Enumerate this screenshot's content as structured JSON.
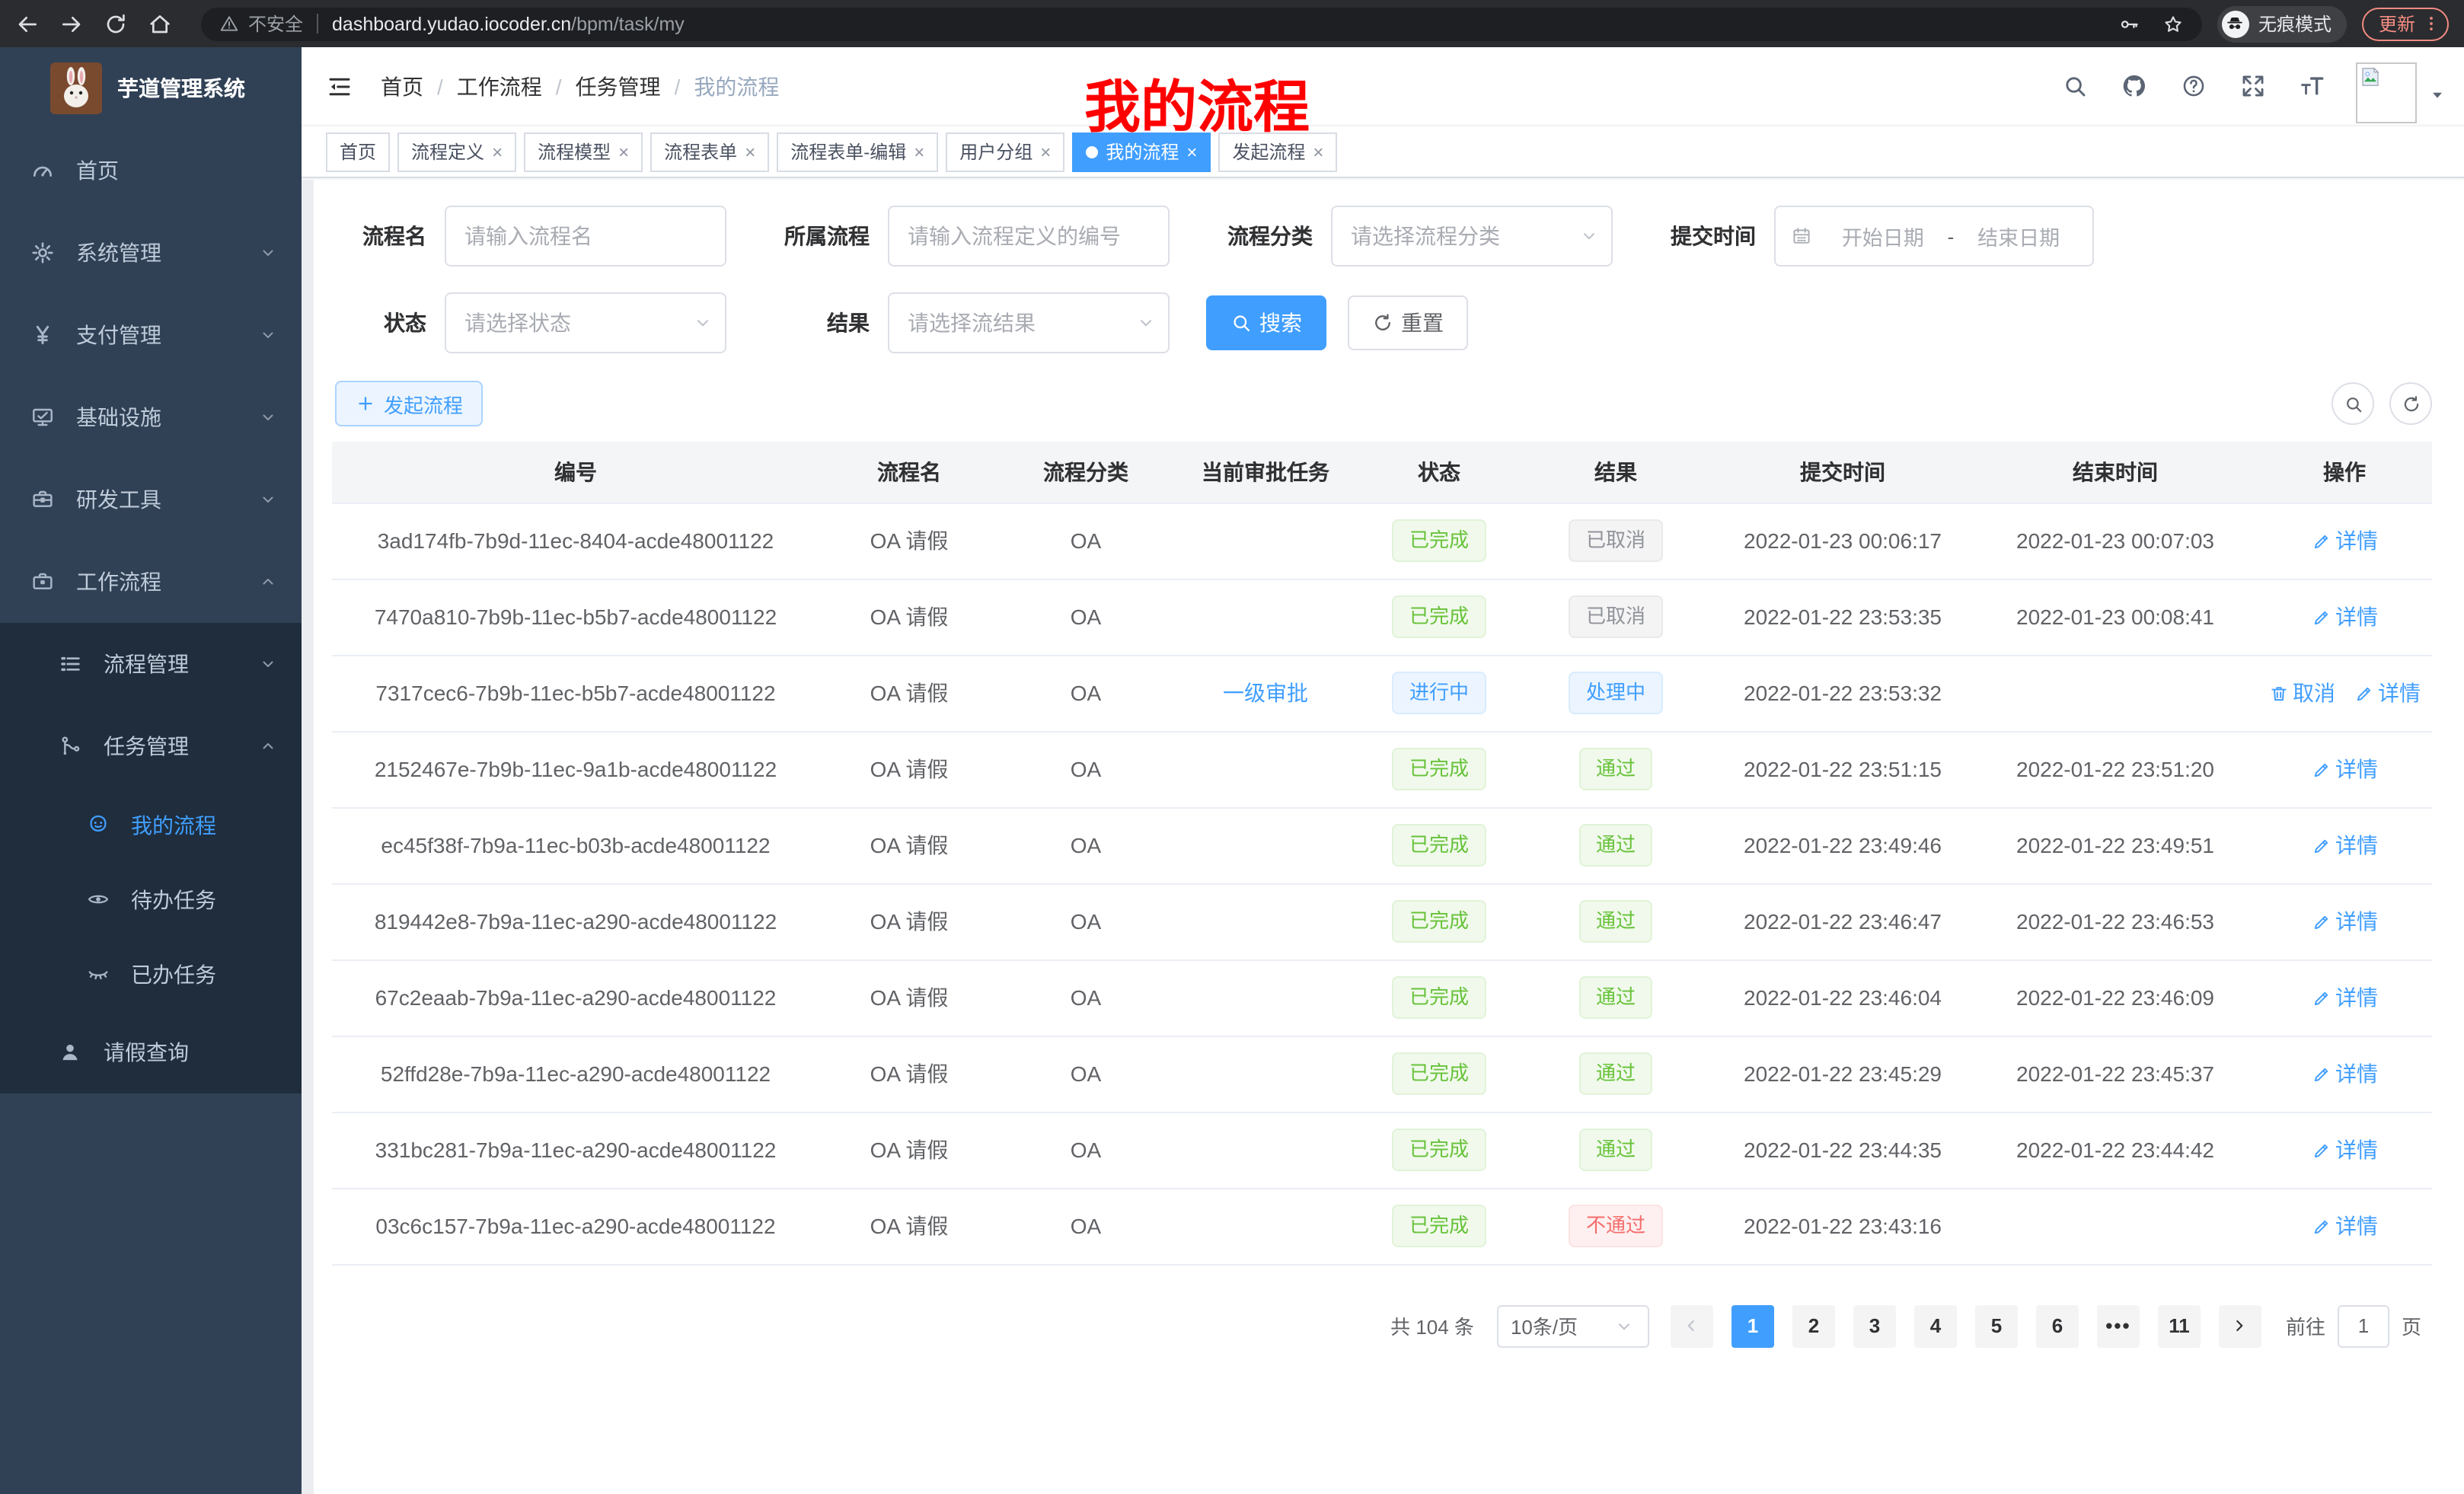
{
  "browser": {
    "security_label": "不安全",
    "url_host": "dashboard.yudao.iocoder.cn",
    "url_path": "/bpm/task/my",
    "incognito_label": "无痕模式",
    "update_label": "更新"
  },
  "sidebar": {
    "title": "芋道管理系统",
    "items": [
      {
        "label": "首页",
        "icon": "gauge",
        "level": 0,
        "sub": false,
        "active": false,
        "chevron": ""
      },
      {
        "label": "系统管理",
        "icon": "gear",
        "level": 0,
        "sub": false,
        "active": false,
        "chevron": "down"
      },
      {
        "label": "支付管理",
        "icon": "yen",
        "level": 0,
        "sub": false,
        "active": false,
        "chevron": "down"
      },
      {
        "label": "基础设施",
        "icon": "monitor",
        "level": 0,
        "sub": false,
        "active": false,
        "chevron": "down"
      },
      {
        "label": "研发工具",
        "icon": "toolbox",
        "level": 0,
        "sub": false,
        "active": false,
        "chevron": "down"
      },
      {
        "label": "工作流程",
        "icon": "briefcase",
        "level": 0,
        "sub": false,
        "active": false,
        "chevron": "up"
      },
      {
        "label": "流程管理",
        "icon": "list",
        "level": 1,
        "sub": true,
        "active": false,
        "chevron": "down"
      },
      {
        "label": "任务管理",
        "icon": "flow",
        "level": 1,
        "sub": true,
        "active": false,
        "chevron": "up"
      },
      {
        "label": "我的流程",
        "icon": "robot",
        "level": 2,
        "sub": true,
        "active": true,
        "chevron": ""
      },
      {
        "label": "待办任务",
        "icon": "eye",
        "level": 2,
        "sub": true,
        "active": false,
        "chevron": ""
      },
      {
        "label": "已办任务",
        "icon": "eye-closed",
        "level": 2,
        "sub": true,
        "active": false,
        "chevron": ""
      },
      {
        "label": "请假查询",
        "icon": "user",
        "level": 1,
        "sub": true,
        "active": false,
        "chevron": ""
      }
    ]
  },
  "header": {
    "breadcrumb": [
      "首页",
      "工作流程",
      "任务管理",
      "我的流程"
    ],
    "annotation": "我的流程"
  },
  "tabs": [
    {
      "label": "首页",
      "closable": false,
      "active": false
    },
    {
      "label": "流程定义",
      "closable": true,
      "active": false
    },
    {
      "label": "流程模型",
      "closable": true,
      "active": false
    },
    {
      "label": "流程表单",
      "closable": true,
      "active": false
    },
    {
      "label": "流程表单-编辑",
      "closable": true,
      "active": false
    },
    {
      "label": "用户分组",
      "closable": true,
      "active": false
    },
    {
      "label": "我的流程",
      "closable": true,
      "active": true
    },
    {
      "label": "发起流程",
      "closable": true,
      "active": false
    }
  ],
  "filters": {
    "name_label": "流程名",
    "name_placeholder": "请输入流程名",
    "process_label": "所属流程",
    "process_placeholder": "请输入流程定义的编号",
    "category_label": "流程分类",
    "category_placeholder": "请选择流程分类",
    "time_label": "提交时间",
    "start_placeholder": "开始日期",
    "range_separator": "-",
    "end_placeholder": "结束日期",
    "status_label": "状态",
    "status_placeholder": "请选择状态",
    "result_label": "结果",
    "result_placeholder": "请选择流结果",
    "search_label": "搜索",
    "reset_label": "重置"
  },
  "toolbar": {
    "create_label": "发起流程"
  },
  "table": {
    "columns": [
      "编号",
      "流程名",
      "流程分类",
      "当前审批任务",
      "状态",
      "结果",
      "提交时间",
      "结束时间",
      "操作"
    ],
    "action_detail": "详情",
    "action_cancel": "取消",
    "rows": [
      {
        "id": "3ad174fb-7b9d-11ec-8404-acde48001122",
        "name": "OA 请假",
        "category": "OA",
        "task": "",
        "status": "已完成",
        "status_type": "success",
        "result": "已取消",
        "result_type": "info",
        "submit": "2022-01-23 00:06:17",
        "end": "2022-01-23 00:07:03",
        "cancellable": false
      },
      {
        "id": "7470a810-7b9b-11ec-b5b7-acde48001122",
        "name": "OA 请假",
        "category": "OA",
        "task": "",
        "status": "已完成",
        "status_type": "success",
        "result": "已取消",
        "result_type": "info",
        "submit": "2022-01-22 23:53:35",
        "end": "2022-01-23 00:08:41",
        "cancellable": false
      },
      {
        "id": "7317cec6-7b9b-11ec-b5b7-acde48001122",
        "name": "OA 请假",
        "category": "OA",
        "task": "一级审批",
        "status": "进行中",
        "status_type": "primary",
        "result": "处理中",
        "result_type": "primary",
        "submit": "2022-01-22 23:53:32",
        "end": "",
        "cancellable": true
      },
      {
        "id": "2152467e-7b9b-11ec-9a1b-acde48001122",
        "name": "OA 请假",
        "category": "OA",
        "task": "",
        "status": "已完成",
        "status_type": "success",
        "result": "通过",
        "result_type": "success",
        "submit": "2022-01-22 23:51:15",
        "end": "2022-01-22 23:51:20",
        "cancellable": false
      },
      {
        "id": "ec45f38f-7b9a-11ec-b03b-acde48001122",
        "name": "OA 请假",
        "category": "OA",
        "task": "",
        "status": "已完成",
        "status_type": "success",
        "result": "通过",
        "result_type": "success",
        "submit": "2022-01-22 23:49:46",
        "end": "2022-01-22 23:49:51",
        "cancellable": false
      },
      {
        "id": "819442e8-7b9a-11ec-a290-acde48001122",
        "name": "OA 请假",
        "category": "OA",
        "task": "",
        "status": "已完成",
        "status_type": "success",
        "result": "通过",
        "result_type": "success",
        "submit": "2022-01-22 23:46:47",
        "end": "2022-01-22 23:46:53",
        "cancellable": false
      },
      {
        "id": "67c2eaab-7b9a-11ec-a290-acde48001122",
        "name": "OA 请假",
        "category": "OA",
        "task": "",
        "status": "已完成",
        "status_type": "success",
        "result": "通过",
        "result_type": "success",
        "submit": "2022-01-22 23:46:04",
        "end": "2022-01-22 23:46:09",
        "cancellable": false
      },
      {
        "id": "52ffd28e-7b9a-11ec-a290-acde48001122",
        "name": "OA 请假",
        "category": "OA",
        "task": "",
        "status": "已完成",
        "status_type": "success",
        "result": "通过",
        "result_type": "success",
        "submit": "2022-01-22 23:45:29",
        "end": "2022-01-22 23:45:37",
        "cancellable": false
      },
      {
        "id": "331bc281-7b9a-11ec-a290-acde48001122",
        "name": "OA 请假",
        "category": "OA",
        "task": "",
        "status": "已完成",
        "status_type": "success",
        "result": "通过",
        "result_type": "success",
        "submit": "2022-01-22 23:44:35",
        "end": "2022-01-22 23:44:42",
        "cancellable": false
      },
      {
        "id": "03c6c157-7b9a-11ec-a290-acde48001122",
        "name": "OA 请假",
        "category": "OA",
        "task": "",
        "status": "已完成",
        "status_type": "success",
        "result": "不通过",
        "result_type": "danger",
        "submit": "2022-01-22 23:43:16",
        "end": "",
        "cancellable": false
      }
    ]
  },
  "pagination": {
    "total": "共 104 条",
    "page_size": "10条/页",
    "pages": [
      "1",
      "2",
      "3",
      "4",
      "5",
      "6",
      "•••",
      "11"
    ],
    "active_page": "1",
    "goto_label": "前往",
    "goto_value": "1",
    "page_unit": "页"
  },
  "colors": {
    "primary": "#409eff",
    "success": "#67c23a",
    "danger": "#f56c6c",
    "info": "#909399",
    "sidebar_bg": "#304156",
    "sidebar_submenu_bg": "#1f2d3d",
    "active_tab_bg": "#409eff",
    "annotation_red": "#fe0000",
    "chrome_bg": "#2b2c2f",
    "update_coral": "#f28b82"
  }
}
